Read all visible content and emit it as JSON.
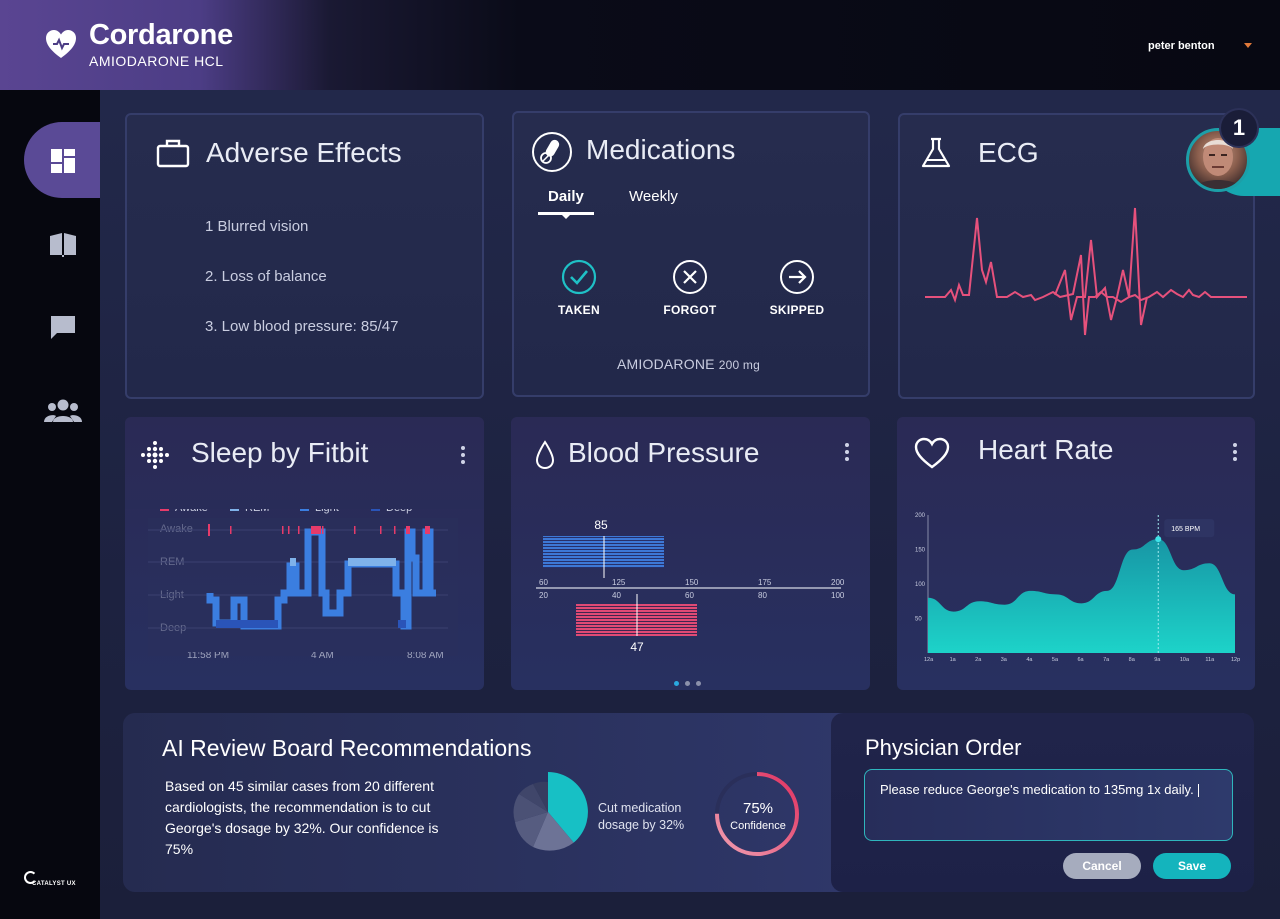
{
  "app": {
    "title": "Cordarone",
    "subtitle": "AMIODARONE  HCL",
    "user_name": "peter benton",
    "footer_logo": "CATALYST UX"
  },
  "sidebar": {
    "items": [
      {
        "icon": "dashboard-icon",
        "active": true
      },
      {
        "icon": "book-icon",
        "active": false
      },
      {
        "icon": "chat-icon",
        "active": false
      },
      {
        "icon": "people-icon",
        "active": false
      }
    ]
  },
  "adverse_effects": {
    "title": "Adverse Effects",
    "icon": "briefcase-icon",
    "items": [
      "1 Blurred vision",
      "2. Loss of balance",
      "3. Low blood pressure: 85/47"
    ]
  },
  "medications": {
    "title": "Medications",
    "tabs": [
      "Daily",
      "Weekly"
    ],
    "active_tab": "Daily",
    "actions": [
      "TAKEN",
      "FORGOT",
      "SKIPPED"
    ],
    "drug_name": "AMIODARONE",
    "dose": "200 mg"
  },
  "ecg": {
    "title": "ECG",
    "badge_count": "1"
  },
  "sleep": {
    "title": "Sleep by Fitbit",
    "legend": [
      {
        "label": "Awake",
        "color": "#e63b6a"
      },
      {
        "label": "REM",
        "color": "#7fb2ea"
      },
      {
        "label": "Light",
        "color": "#3b7ee0"
      },
      {
        "label": "Deep",
        "color": "#2a54b8"
      }
    ],
    "stages": [
      "Awake",
      "REM",
      "Light",
      "Deep"
    ],
    "time_labels": [
      "11:58 PM",
      "4 AM",
      "8:08 AM"
    ]
  },
  "blood_pressure": {
    "title": "Blood Pressure",
    "systolic": "85",
    "diastolic": "47",
    "systolic_scale": [
      "60",
      "125",
      "150",
      "175",
      "200"
    ],
    "diastolic_scale": [
      "20",
      "40",
      "60",
      "80",
      "100"
    ],
    "page_dots": 3,
    "active_dot": 0
  },
  "heart_rate": {
    "title": "Heart Rate",
    "tooltip": "165 BPM"
  },
  "chart_data": {
    "type": "area",
    "title": "Heart Rate",
    "categories": [
      "12a",
      "1a",
      "2a",
      "3a",
      "4a",
      "5a",
      "6a",
      "7a",
      "8a",
      "9a",
      "10a",
      "11a",
      "12p"
    ],
    "values": [
      80,
      60,
      75,
      70,
      90,
      85,
      72,
      90,
      150,
      165,
      120,
      130,
      85
    ],
    "y_ticks": [
      "200",
      "150",
      "100",
      "50"
    ],
    "ylim": [
      0,
      200
    ],
    "color": "#19c3c6"
  },
  "ai_review": {
    "title": "AI Review Board Recommendations",
    "body": "Based on 45 similar cases from 20 different cardiologists, the recommendation is to cut George's dosage by 32%. Our confidence is 75%",
    "pie_caption_1": "Cut medication",
    "pie_caption_2": "dosage by 32%",
    "confidence_value": "75%",
    "confidence_label": "Confidence",
    "confidence_fraction": 0.75,
    "cut_fraction": 0.32
  },
  "physician_order": {
    "title": "Physician Order",
    "text": "Please reduce George's medication to 135mg 1x daily.",
    "cancel_label": "Cancel",
    "save_label": "Save"
  }
}
